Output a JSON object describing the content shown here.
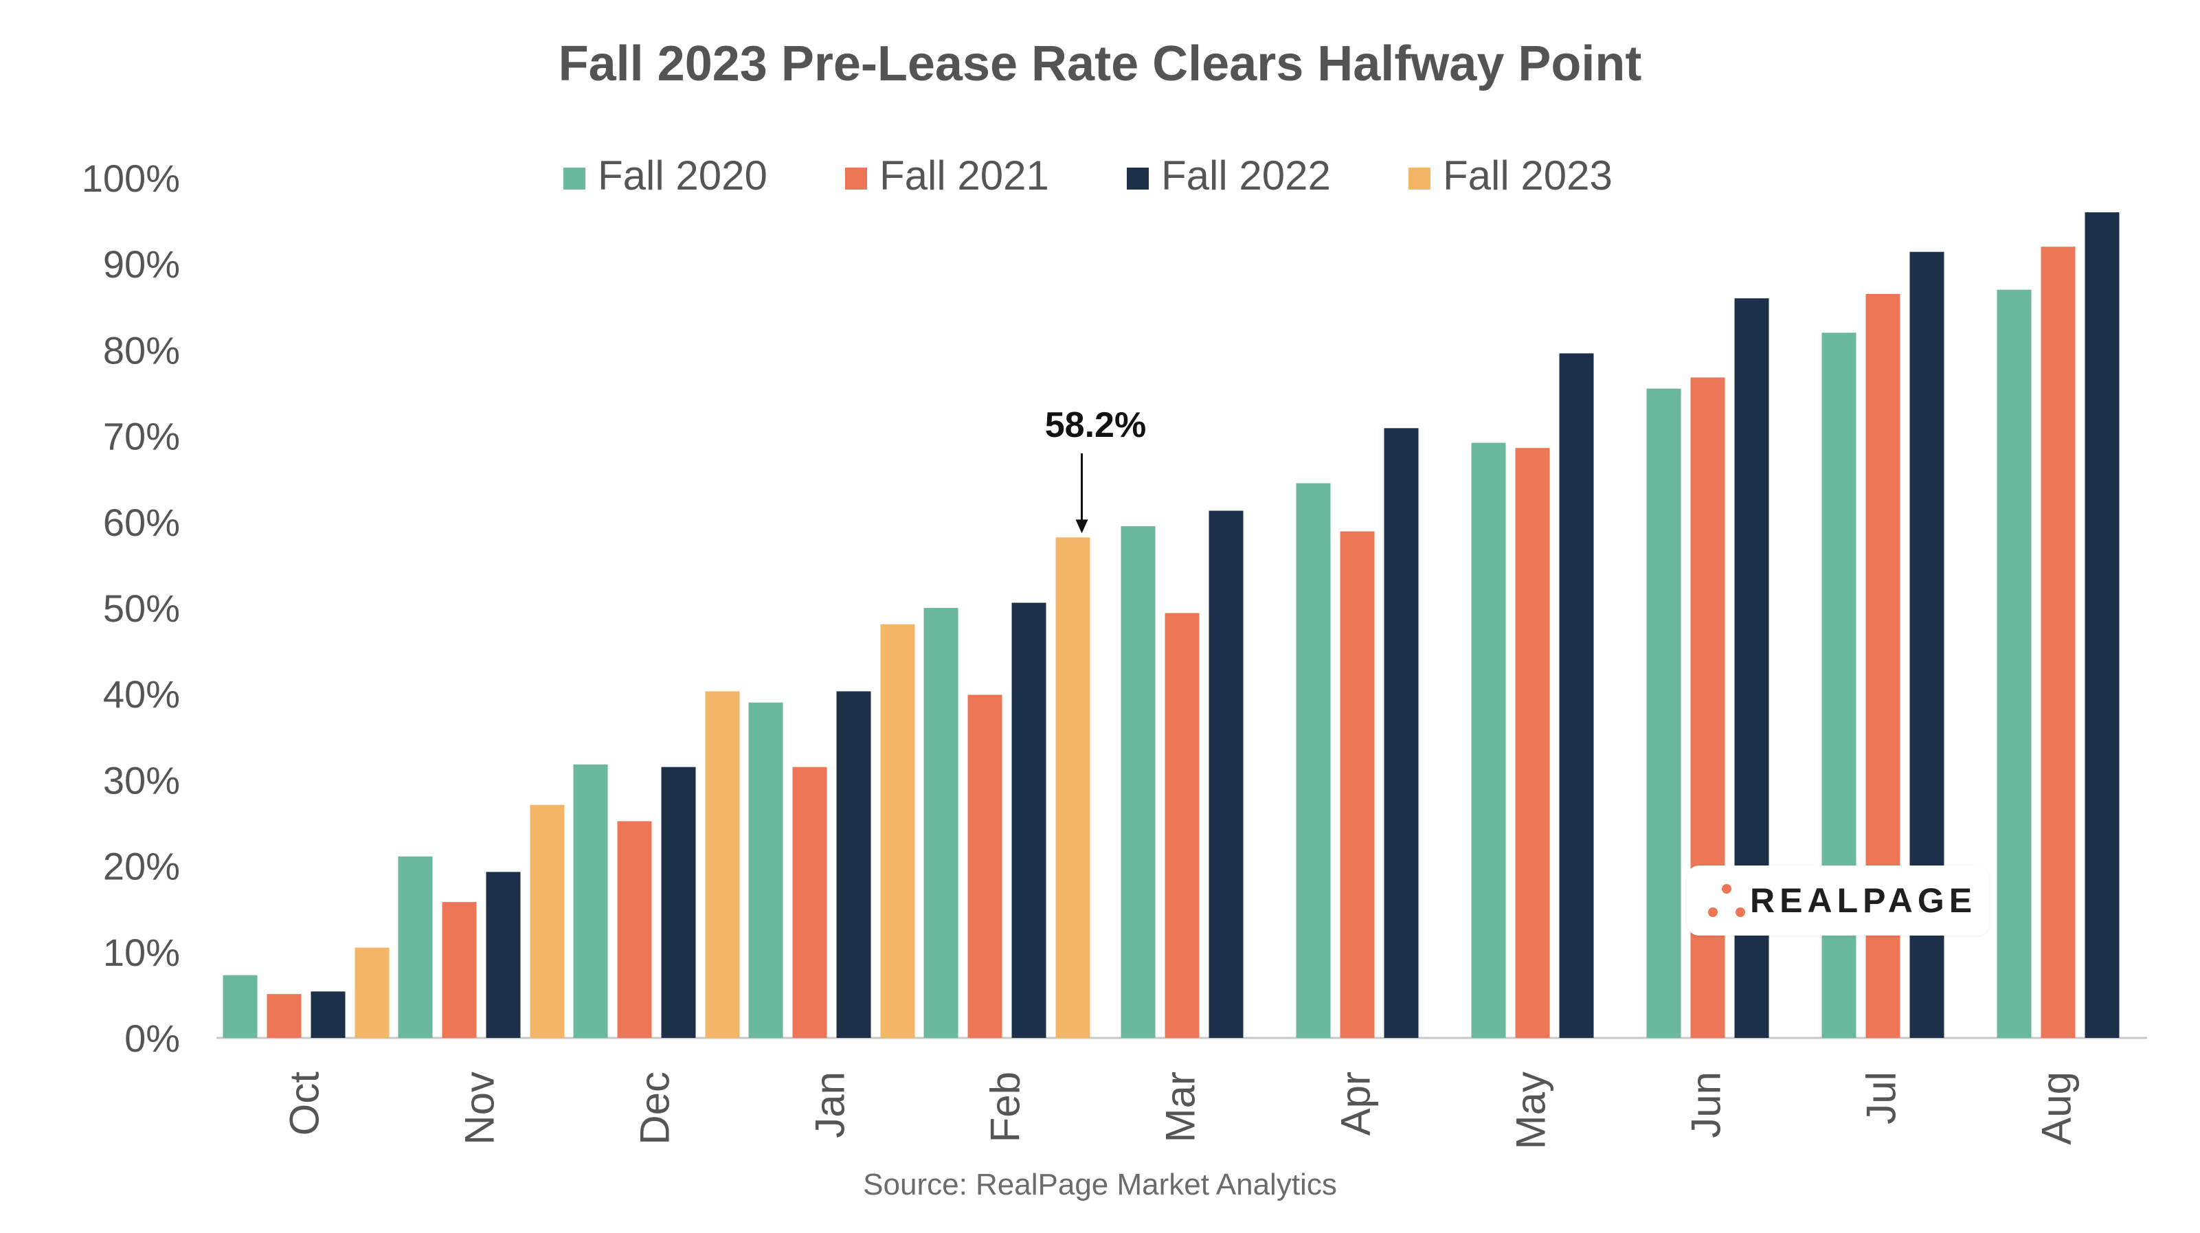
{
  "chart_data": {
    "type": "bar",
    "title": "Fall 2023 Pre-Lease Rate Clears Halfway Point",
    "source": "Source: RealPage Market Analytics",
    "categories": [
      "Oct",
      "Nov",
      "Dec",
      "Jan",
      "Feb",
      "Mar",
      "Apr",
      "May",
      "Jun",
      "Jul",
      "Aug"
    ],
    "series": [
      {
        "name": "Fall 2020",
        "color": "#6ab89e",
        "values": [
          7.3,
          21.1,
          31.8,
          39.0,
          50.0,
          59.5,
          64.5,
          69.2,
          75.5,
          82.0,
          87.0
        ]
      },
      {
        "name": "Fall 2021",
        "color": "#ec7656",
        "values": [
          5.1,
          15.8,
          25.2,
          31.5,
          39.9,
          49.4,
          58.9,
          68.6,
          76.8,
          86.5,
          92.0
        ]
      },
      {
        "name": "Fall 2022",
        "color": "#1c304a",
        "values": [
          5.4,
          19.3,
          31.5,
          40.3,
          50.6,
          61.3,
          70.9,
          79.6,
          86.0,
          91.4,
          96.0
        ]
      },
      {
        "name": "Fall 2023",
        "color": "#f3b667",
        "values": [
          10.5,
          27.1,
          40.3,
          48.1,
          58.2,
          null,
          null,
          null,
          null,
          null,
          null
        ]
      }
    ],
    "ylim": [
      0,
      100
    ],
    "yticks": [
      "0%",
      "10%",
      "20%",
      "30%",
      "40%",
      "50%",
      "60%",
      "70%",
      "80%",
      "90%",
      "100%"
    ],
    "legend_position": "top",
    "grid": false,
    "annotation": {
      "text": "58.2%",
      "category": "Feb",
      "series": "Fall 2023",
      "value": 58.2
    }
  },
  "logo": {
    "text": "REALPAGE",
    "colors": [
      "#ec7656"
    ]
  }
}
